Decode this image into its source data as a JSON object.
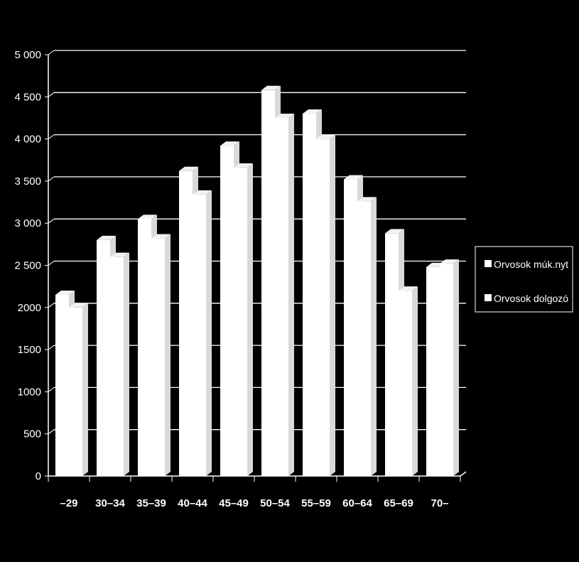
{
  "chart_data": {
    "type": "bar",
    "style": "3d-clustered",
    "categories": [
      "–29",
      "30–34",
      "35–39",
      "40–44",
      "45–49",
      "50–54",
      "55–59",
      "60–64",
      "65–69",
      "70–"
    ],
    "series": [
      {
        "name": "Orvosok múk.nyt",
        "values": [
          2150,
          2800,
          3050,
          3620,
          3920,
          4580,
          4300,
          3520,
          2880,
          2480
        ]
      },
      {
        "name": "Orvosok dolgozó",
        "values": [
          2000,
          2600,
          2820,
          3340,
          3660,
          4250,
          4000,
          3260,
          2200,
          2520
        ]
      }
    ],
    "y_ticks": [
      "0",
      "500",
      "1000",
      "1500",
      "2000",
      "2 500",
      "3 000",
      "3 500",
      "4 000",
      "4 500",
      "5 000"
    ],
    "ylim": [
      0,
      5000
    ],
    "grid": true,
    "legend_position": "right",
    "colors": {
      "background": "#000000",
      "bars": "#ffffff",
      "grid": "#ffffff",
      "axis": "#ffffff"
    }
  }
}
